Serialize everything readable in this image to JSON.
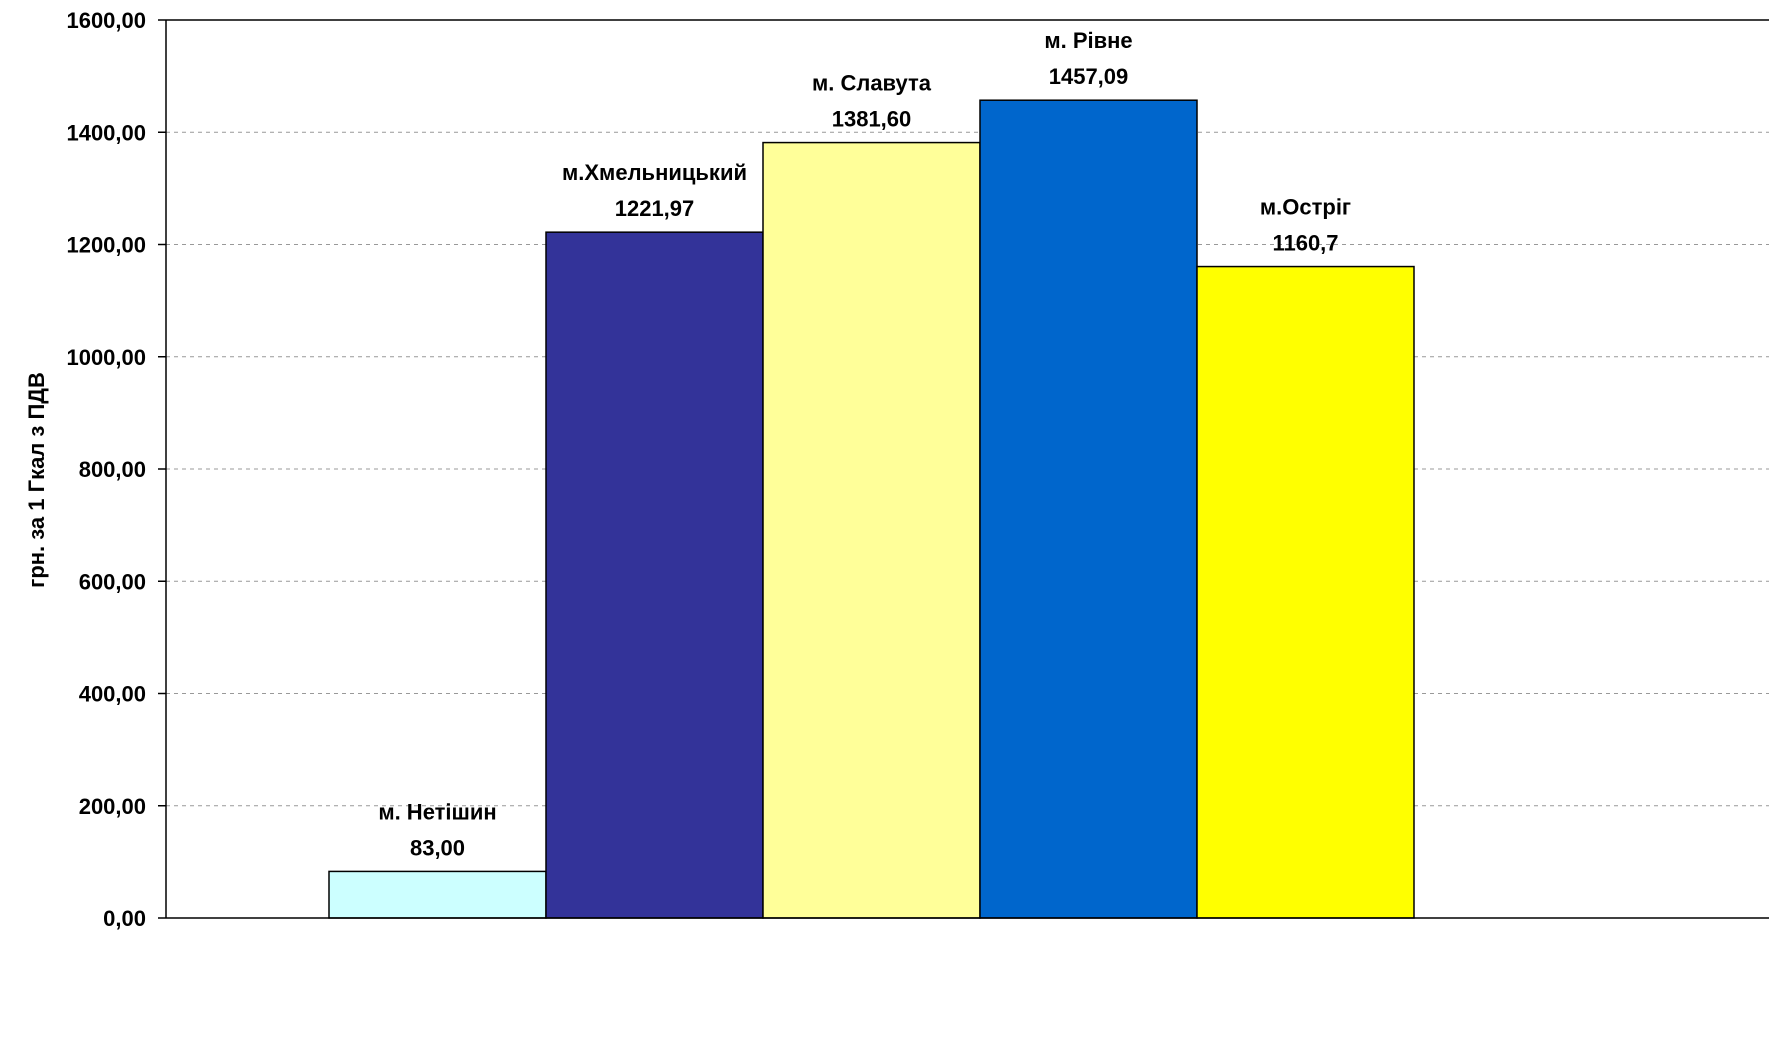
{
  "chart_data": {
    "type": "bar",
    "ylabel": "грн. за 1 Гкал з ПДВ",
    "ylim": [
      0,
      1600
    ],
    "yticks": [
      "0,00",
      "200,00",
      "400,00",
      "600,00",
      "800,00",
      "1000,00",
      "1200,00",
      "1400,00",
      "1600,00"
    ],
    "grid": true,
    "legend": "none",
    "series": [
      {
        "name": "м. Нетішин",
        "value": 83.0,
        "value_label": "83,00",
        "color": "#CCFFFF"
      },
      {
        "name": "м.Хмельницький",
        "value": 1221.97,
        "value_label": "1221,97",
        "color": "#333399"
      },
      {
        "name": "м. Славута",
        "value": 1381.6,
        "value_label": "1381,60",
        "color": "#FFFF99"
      },
      {
        "name": "м. Рівне",
        "value": 1457.09,
        "value_label": "1457,09",
        "color": "#0066CC"
      },
      {
        "name": "м.Остріг",
        "value": 1160.7,
        "value_label": "1160,7",
        "color": "#FFFF00"
      }
    ]
  }
}
